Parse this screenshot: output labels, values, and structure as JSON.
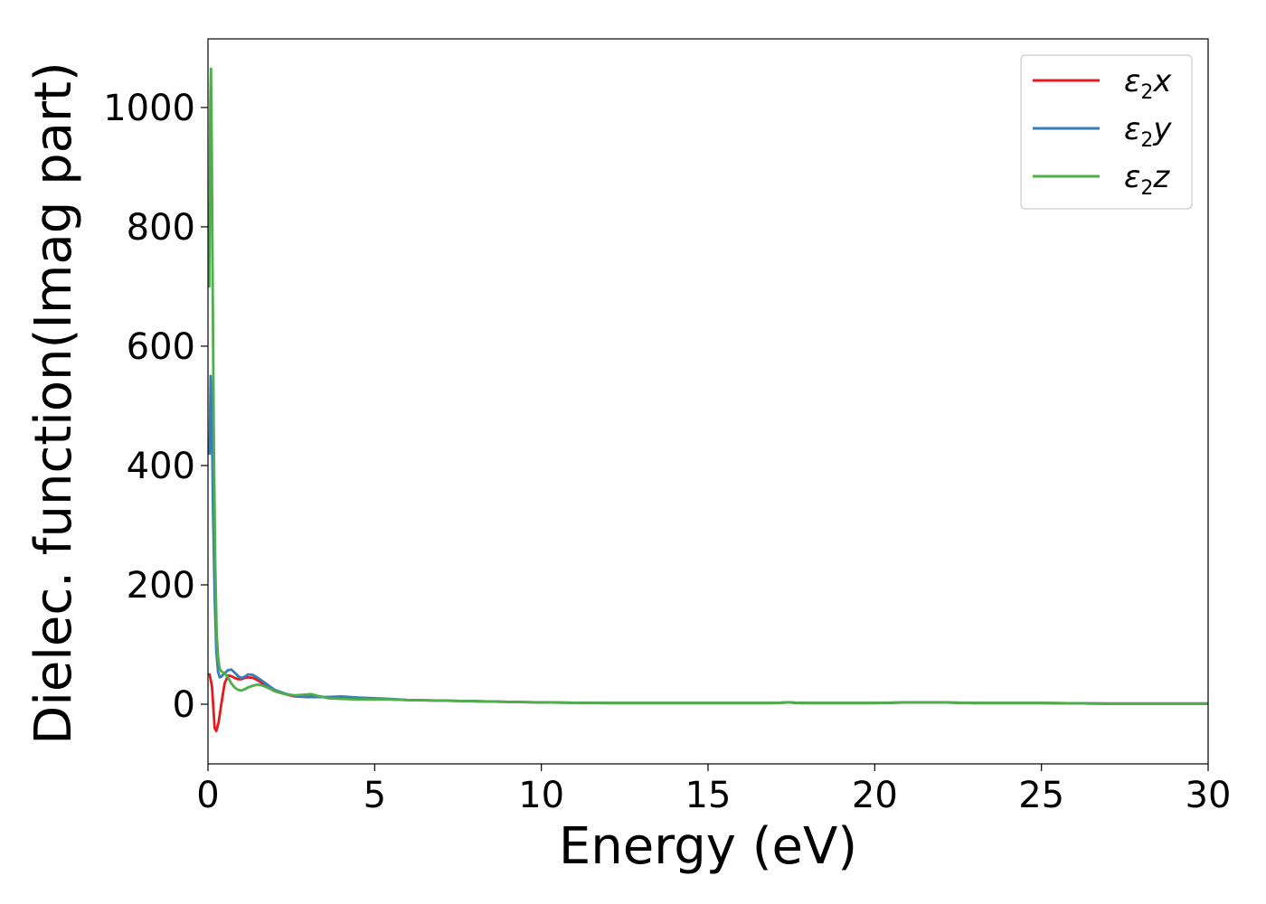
{
  "chart_data": {
    "type": "line",
    "title": "",
    "xlabel": "Energy (eV)",
    "ylabel": "Dielec. function(Imag part)",
    "xlim": [
      0,
      30
    ],
    "ylim": [
      -100,
      1115
    ],
    "xticks": [
      0,
      5,
      10,
      15,
      20,
      25,
      30
    ],
    "yticks": [
      0,
      200,
      400,
      600,
      800,
      1000
    ],
    "grid": false,
    "legend_position": "top-right",
    "series": [
      {
        "name": "ε2x",
        "label_base": "ε",
        "label_sub": "2",
        "label_tail": "x",
        "color": "#e41a1c",
        "x": [
          0.05,
          0.12,
          0.2,
          0.25,
          0.32,
          0.4,
          0.5,
          0.6,
          0.7,
          0.8,
          0.9,
          1.0,
          1.1,
          1.2,
          1.35,
          1.5,
          1.7,
          2.0,
          2.3,
          2.6,
          3.0,
          3.2,
          3.5,
          4.0,
          4.5,
          5.0,
          5.5,
          6.0,
          7.0,
          8.0,
          9.0,
          10.0,
          12.0,
          14.0,
          16.0,
          17.0,
          17.4,
          17.8,
          18.5,
          20.0,
          21.0,
          22.0,
          23.0,
          25.0,
          27.0,
          30.0
        ],
        "y": [
          50,
          30,
          -40,
          -45,
          -30,
          0,
          35,
          48,
          47,
          44,
          42,
          42,
          44,
          45,
          44,
          40,
          32,
          22,
          17,
          13,
          12,
          14,
          12,
          11,
          9,
          9,
          8,
          7,
          6,
          5,
          4,
          3,
          2,
          2,
          2,
          2,
          3,
          2,
          2,
          2,
          3,
          3,
          2,
          2,
          1,
          1
        ]
      },
      {
        "name": "ε2y",
        "label_base": "ε",
        "label_sub": "2",
        "label_tail": "y",
        "color": "#377eb8",
        "x": [
          0.05,
          0.08,
          0.11,
          0.15,
          0.2,
          0.25,
          0.3,
          0.35,
          0.4,
          0.5,
          0.6,
          0.7,
          0.8,
          0.9,
          1.0,
          1.1,
          1.2,
          1.35,
          1.5,
          1.7,
          2.0,
          2.3,
          2.6,
          3.0,
          3.5,
          4.0,
          4.5,
          5.0,
          5.5,
          6.0,
          7.0,
          8.0,
          9.0,
          10.0,
          12.0,
          14.0,
          16.0,
          17.0,
          17.4,
          17.8,
          18.5,
          20.0,
          21.0,
          22.0,
          23.0,
          25.0,
          27.0,
          30.0
        ],
        "y": [
          420,
          550,
          500,
          330,
          180,
          90,
          55,
          45,
          46,
          52,
          57,
          58,
          53,
          47,
          44,
          46,
          50,
          49,
          44,
          36,
          24,
          18,
          14,
          12,
          12,
          13,
          11,
          10,
          9,
          7,
          6,
          5,
          4,
          3,
          2,
          2,
          2,
          2,
          3,
          2,
          2,
          2,
          3,
          3,
          2,
          2,
          1,
          1
        ]
      },
      {
        "name": "ε2z",
        "label_base": "ε",
        "label_sub": "2",
        "label_tail": "z",
        "color": "#4daf4a",
        "x": [
          0.04,
          0.07,
          0.09,
          0.11,
          0.14,
          0.18,
          0.22,
          0.26,
          0.3,
          0.35,
          0.4,
          0.5,
          0.6,
          0.7,
          0.8,
          0.9,
          1.0,
          1.1,
          1.2,
          1.35,
          1.5,
          1.7,
          2.0,
          2.3,
          2.6,
          2.9,
          3.1,
          3.3,
          3.6,
          4.0,
          4.5,
          5.0,
          5.5,
          6.0,
          7.0,
          8.0,
          9.0,
          10.0,
          12.0,
          14.0,
          16.0,
          17.0,
          17.4,
          17.8,
          18.5,
          20.0,
          21.0,
          22.0,
          23.0,
          25.0,
          27.0,
          30.0
        ],
        "y": [
          700,
          1010,
          1065,
          950,
          700,
          420,
          230,
          120,
          80,
          60,
          55,
          52,
          45,
          35,
          28,
          24,
          23,
          25,
          28,
          31,
          33,
          30,
          22,
          17,
          15,
          16,
          17,
          14,
          10,
          9,
          8,
          8,
          8,
          7,
          6,
          5,
          4,
          3,
          2,
          2,
          2,
          2,
          3,
          2,
          2,
          2,
          3,
          3,
          2,
          2,
          1,
          1
        ]
      }
    ]
  }
}
